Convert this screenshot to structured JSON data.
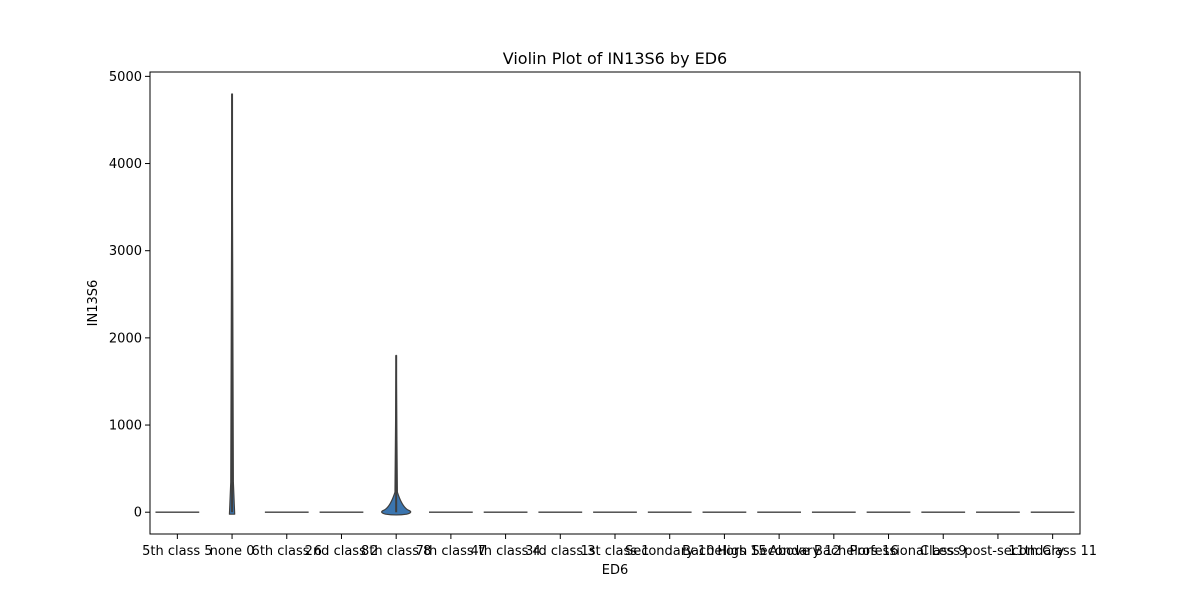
{
  "colors": {
    "violin_fill": "#3b75af",
    "violin_edge": "#3f3f3f",
    "axes_edge": "#000000"
  },
  "chart_data": {
    "type": "violin",
    "title": "Violin Plot of IN13S6 by ED6",
    "xlabel": "ED6",
    "ylabel": "IN13S6",
    "ylim": [
      -250,
      5050
    ],
    "yticks": [
      0,
      1000,
      2000,
      3000,
      4000,
      5000
    ],
    "ytick_labels": [
      "0",
      "1000",
      "2000",
      "3000",
      "4000",
      "5000"
    ],
    "grid": false,
    "legend": "none",
    "categories": [
      "5th class 5",
      "none 0",
      "6th class 6",
      "2nd class 2",
      "8th class 8",
      "7th class 7",
      "4th class 4",
      "3rd class 3",
      "1st class 1",
      "Secondary 10",
      "Bachelors 15",
      "High Secondary 12",
      "Above Bachelors 16",
      "Professional",
      "Class 9",
      "Less post-secondary",
      "11th Class 11"
    ],
    "series": [
      {
        "category": "5th class 5",
        "min": 0,
        "max": 0,
        "bulk_width": 0
      },
      {
        "category": "none 0",
        "min": 0,
        "max": 4800,
        "bulk_width": 0.12
      },
      {
        "category": "6th class 6",
        "min": 0,
        "max": 0,
        "bulk_width": 0
      },
      {
        "category": "2nd class 2",
        "min": 0,
        "max": 0,
        "bulk_width": 0
      },
      {
        "category": "8th class 8",
        "min": 0,
        "max": 1800,
        "bulk_width": 0.8
      },
      {
        "category": "7th class 7",
        "min": 0,
        "max": 0,
        "bulk_width": 0
      },
      {
        "category": "4th class 4",
        "min": 0,
        "max": 0,
        "bulk_width": 0
      },
      {
        "category": "3rd class 3",
        "min": 0,
        "max": 0,
        "bulk_width": 0
      },
      {
        "category": "1st class 1",
        "min": 0,
        "max": 0,
        "bulk_width": 0
      },
      {
        "category": "Secondary 10",
        "min": 0,
        "max": 0,
        "bulk_width": 0
      },
      {
        "category": "Bachelors 15",
        "min": 0,
        "max": 0,
        "bulk_width": 0
      },
      {
        "category": "High Secondary 12",
        "min": 0,
        "max": 0,
        "bulk_width": 0
      },
      {
        "category": "Above Bachelors 16",
        "min": 0,
        "max": 0,
        "bulk_width": 0
      },
      {
        "category": "Professional",
        "min": 0,
        "max": 0,
        "bulk_width": 0
      },
      {
        "category": "Class 9",
        "min": 0,
        "max": 0,
        "bulk_width": 0
      },
      {
        "category": "Less post-secondary",
        "min": 0,
        "max": 0,
        "bulk_width": 0
      },
      {
        "category": "11th Class 11",
        "min": 0,
        "max": 0,
        "bulk_width": 0
      }
    ]
  }
}
